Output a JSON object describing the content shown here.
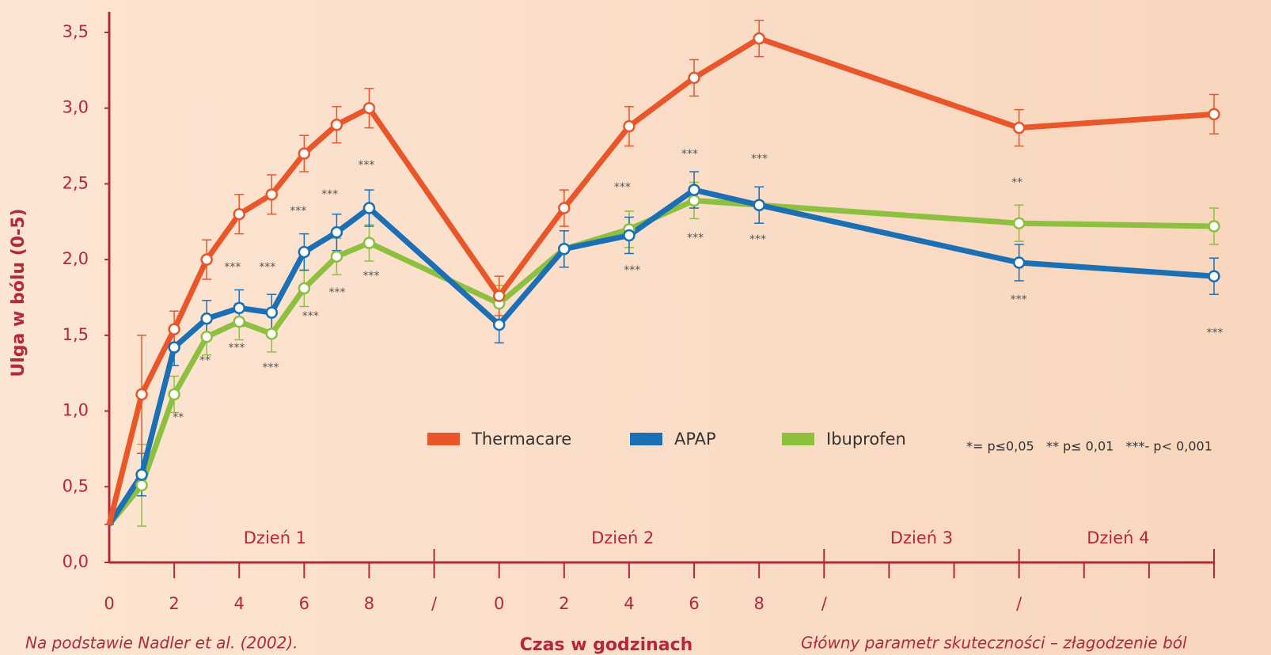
{
  "chart_data": {
    "type": "line",
    "ylabel": "Ulga w bólu (0-5)",
    "xlabel": "Czas w godzinach",
    "x": [
      0,
      1,
      2,
      3,
      4,
      5,
      6,
      7,
      8,
      12,
      14,
      16,
      18,
      20,
      28,
      34
    ],
    "xlim": [
      0,
      34
    ],
    "xticks": [
      0,
      2,
      4,
      6,
      8,
      {
        "value": 10,
        "label": "/"
      },
      {
        "value": 12,
        "label": "0"
      },
      {
        "value": 14,
        "label": "2"
      },
      {
        "value": 16,
        "label": "4"
      },
      {
        "value": 18,
        "label": "6"
      },
      {
        "value": 20,
        "label": "8"
      },
      {
        "value": 22,
        "label": "/"
      },
      {
        "value": 28,
        "label": "/"
      }
    ],
    "minor_xticks": [
      24,
      26,
      30,
      32,
      34
    ],
    "ylim": [
      0,
      3.5
    ],
    "yticks": [
      {
        "value": 0,
        "label": "0,0"
      },
      {
        "value": 0.5,
        "label": "0,5"
      },
      {
        "value": 1,
        "label": "1,0"
      },
      {
        "value": 1.5,
        "label": "1,5"
      },
      {
        "value": 2,
        "label": "2,0"
      },
      {
        "value": 2.5,
        "label": "2,5"
      },
      {
        "value": 3,
        "label": "3,0"
      },
      {
        "value": 3.5,
        "label": "3,5"
      }
    ],
    "day_labels": [
      "Dzień 1",
      "Dzień 2",
      "Dzień 3",
      "Dzień 4"
    ],
    "series": [
      {
        "name": "Thermacare",
        "color": "#e8562a",
        "values": [
          0.25,
          1.11,
          1.54,
          2.0,
          2.3,
          2.43,
          2.7,
          2.89,
          3.0,
          1.76,
          2.34,
          2.88,
          3.2,
          3.46,
          2.87,
          2.96
        ],
        "errors": [
          0,
          0.39,
          0.12,
          0.13,
          0.13,
          0.13,
          0.12,
          0.12,
          0.13,
          0.13,
          0.12,
          0.13,
          0.12,
          0.12,
          0.12,
          0.13
        ]
      },
      {
        "name": "APAP",
        "color": "#1b6fb5",
        "values": [
          0.25,
          0.58,
          1.42,
          1.61,
          1.68,
          1.65,
          2.05,
          2.18,
          2.34,
          1.57,
          2.07,
          2.16,
          2.46,
          2.36,
          1.98,
          1.89
        ],
        "errors": [
          0,
          0.14,
          0.12,
          0.12,
          0.12,
          0.12,
          0.12,
          0.12,
          0.12,
          0.12,
          0.12,
          0.12,
          0.12,
          0.12,
          0.12,
          0.12
        ]
      },
      {
        "name": "Ibuprofen",
        "color": "#8dc03f",
        "values": [
          0.25,
          0.51,
          1.11,
          1.49,
          1.59,
          1.51,
          1.81,
          2.02,
          2.11,
          1.71,
          2.07,
          2.2,
          2.39,
          2.36,
          2.24,
          2.22
        ],
        "errors": [
          0,
          0.27,
          0.12,
          0.12,
          0.12,
          0.12,
          0.12,
          0.12,
          0.12,
          0.12,
          0.12,
          0.12,
          0.12,
          0.12,
          0.12,
          0.12
        ]
      }
    ],
    "annotations": [
      "**",
      "**",
      "***",
      "***",
      "***",
      "***",
      "***",
      "***",
      "***",
      "***",
      "***",
      "***",
      "***",
      "***",
      "***",
      "***",
      "***",
      "***",
      "**",
      "***",
      "***"
    ],
    "significance_note": "*= p≤0,05   ** p≤ 0,01   ***- p< 0,001",
    "source": "Na podstawie Nadler et al. (2002).",
    "footnote": "Główny parametr skuteczności – złagodzenie ból"
  }
}
